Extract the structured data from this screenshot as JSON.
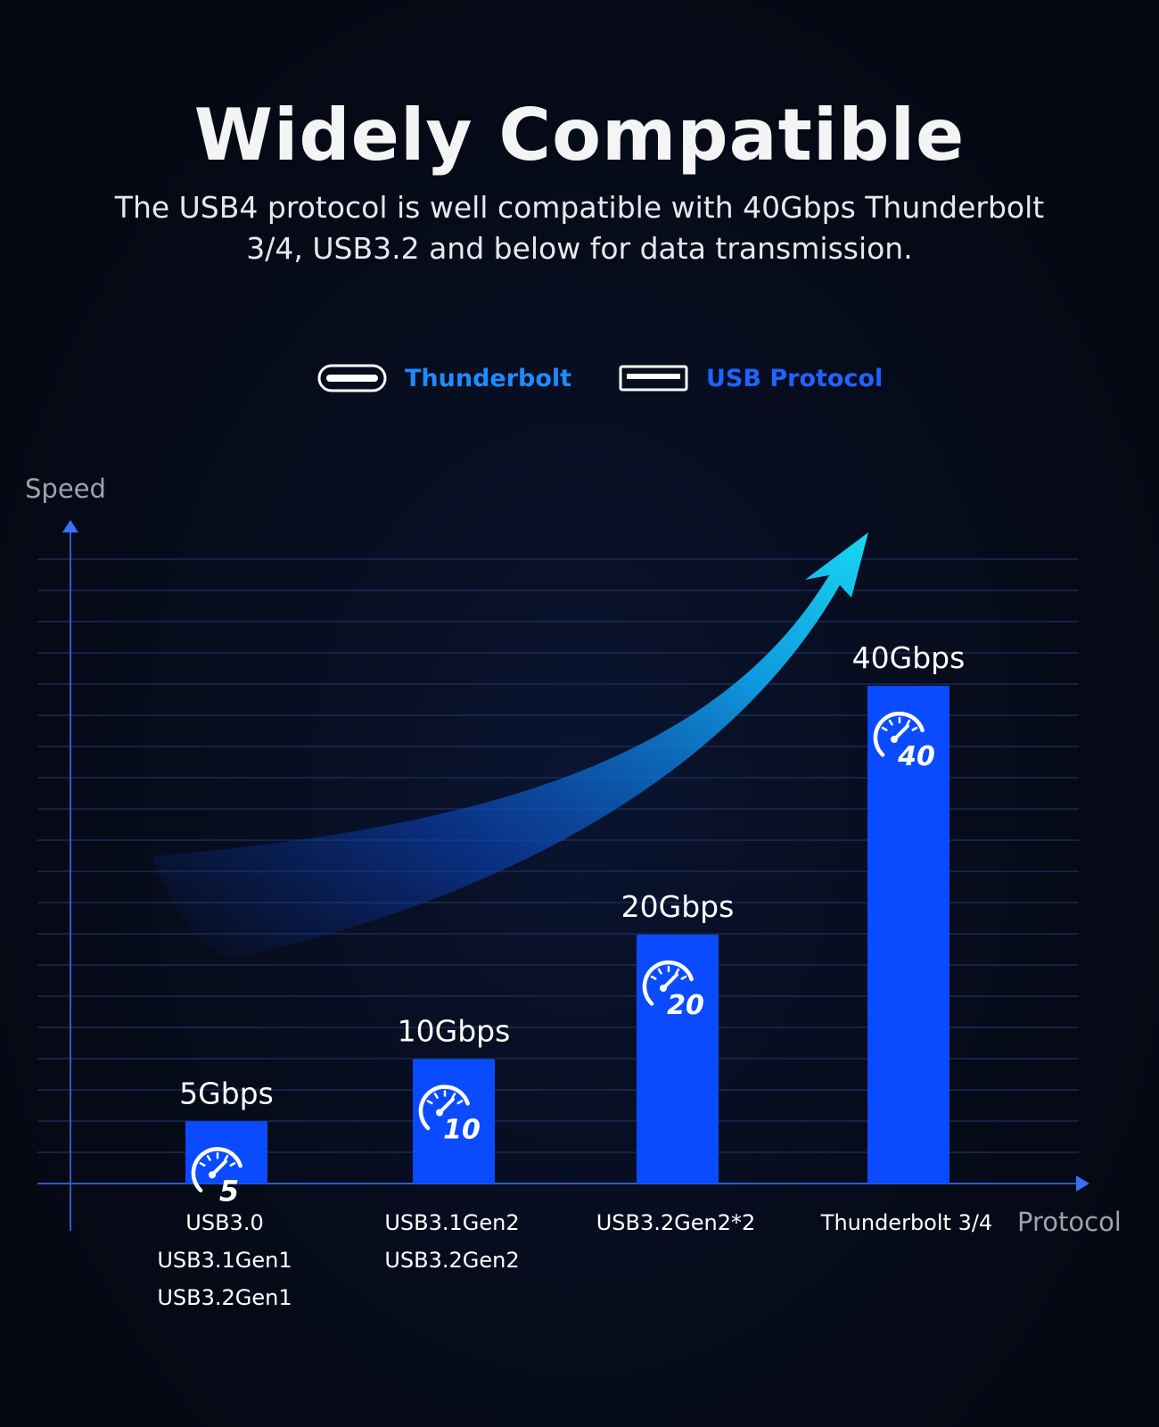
{
  "header": {
    "title": "Widely Compatible",
    "subtitle_line1": "The USB4 protocol is well compatible with 40Gbps Thunderbolt",
    "subtitle_line2": "3/4, USB3.2 and below for data transmission."
  },
  "legend": [
    {
      "label": "Thunderbolt",
      "icon": "thunderbolt-port-icon",
      "color": "#1e8bff"
    },
    {
      "label": "USB Protocol",
      "icon": "usb-port-icon",
      "color": "#1f63ff"
    }
  ],
  "chart_data": {
    "type": "bar",
    "title": "",
    "xlabel": "Protocol",
    "ylabel": "Speed",
    "unit": "Gbps",
    "ylim": [
      0,
      50
    ],
    "grid": true,
    "bar_color": "#0a4bff",
    "categories": [
      [
        "USB3.0",
        "USB3.1Gen1",
        "USB3.2Gen1"
      ],
      [
        "USB3.1Gen2",
        "USB3.2Gen2"
      ],
      [
        "USB3.2Gen2*2"
      ],
      [
        "Thunderbolt 3/4"
      ]
    ],
    "values": [
      5,
      10,
      20,
      40
    ],
    "value_labels": [
      "5Gbps",
      "10Gbps",
      "20Gbps",
      "40Gbps"
    ],
    "badge_labels": [
      "5",
      "10",
      "20",
      "40"
    ],
    "badge_icon": "speedometer-icon",
    "trend_arrow_icon": "trend-arrow-icon"
  }
}
